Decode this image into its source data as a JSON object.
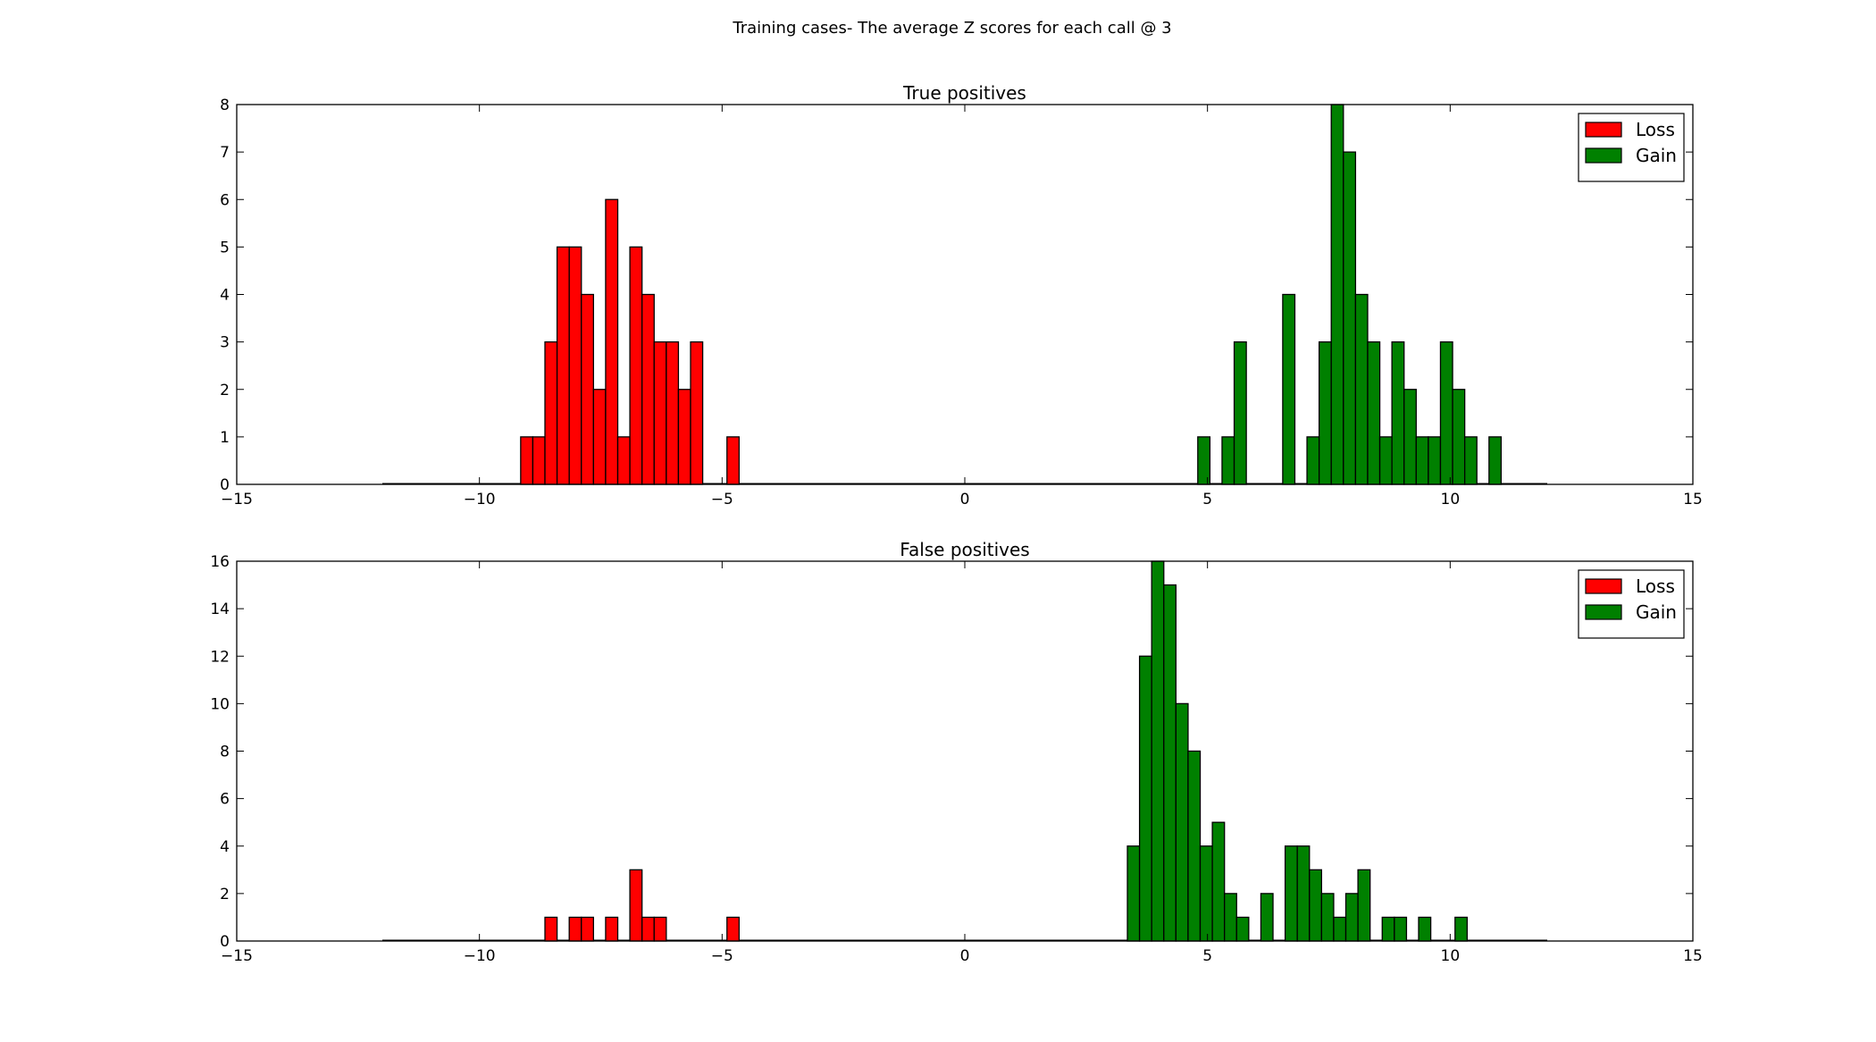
{
  "figure": {
    "title": "Training cases- The average Z scores for each call @ 3"
  },
  "chart_data": [
    {
      "type": "bar",
      "title": "True positives",
      "xlabel": "",
      "ylabel": "",
      "xlim": [
        -15,
        15
      ],
      "ylim": [
        0,
        8
      ],
      "xticks": [
        "−15",
        "−10",
        "−5",
        "0",
        "5",
        "10",
        "15"
      ],
      "yticks": [
        "0",
        "1",
        "2",
        "3",
        "4",
        "5",
        "6",
        "7",
        "8"
      ],
      "grid": false,
      "legend_position": "top-right",
      "baseline_range": [
        -12,
        12
      ],
      "series": [
        {
          "name": "Loss",
          "color": "#ff0000",
          "bins": [
            {
              "x0": -9.15,
              "x1": -8.9,
              "y": 1
            },
            {
              "x0": -8.9,
              "x1": -8.65,
              "y": 1
            },
            {
              "x0": -8.65,
              "x1": -8.4,
              "y": 3
            },
            {
              "x0": -8.4,
              "x1": -8.15,
              "y": 5
            },
            {
              "x0": -8.15,
              "x1": -7.9,
              "y": 5
            },
            {
              "x0": -7.9,
              "x1": -7.65,
              "y": 4
            },
            {
              "x0": -7.65,
              "x1": -7.4,
              "y": 2
            },
            {
              "x0": -7.4,
              "x1": -7.15,
              "y": 6
            },
            {
              "x0": -7.15,
              "x1": -6.9,
              "y": 1
            },
            {
              "x0": -6.9,
              "x1": -6.65,
              "y": 5
            },
            {
              "x0": -6.65,
              "x1": -6.4,
              "y": 4
            },
            {
              "x0": -6.4,
              "x1": -6.15,
              "y": 3
            },
            {
              "x0": -6.15,
              "x1": -5.9,
              "y": 3
            },
            {
              "x0": -5.9,
              "x1": -5.65,
              "y": 2
            },
            {
              "x0": -5.65,
              "x1": -5.4,
              "y": 3
            },
            {
              "x0": -4.9,
              "x1": -4.65,
              "y": 1
            }
          ]
        },
        {
          "name": "Gain",
          "color": "#008000",
          "bins": [
            {
              "x0": 4.8,
              "x1": 5.05,
              "y": 1
            },
            {
              "x0": 5.3,
              "x1": 5.55,
              "y": 1
            },
            {
              "x0": 5.55,
              "x1": 5.8,
              "y": 3
            },
            {
              "x0": 6.55,
              "x1": 6.8,
              "y": 4
            },
            {
              "x0": 7.05,
              "x1": 7.3,
              "y": 1
            },
            {
              "x0": 7.3,
              "x1": 7.55,
              "y": 3
            },
            {
              "x0": 7.55,
              "x1": 7.8,
              "y": 8
            },
            {
              "x0": 7.8,
              "x1": 8.05,
              "y": 7
            },
            {
              "x0": 8.05,
              "x1": 8.3,
              "y": 4
            },
            {
              "x0": 8.3,
              "x1": 8.55,
              "y": 3
            },
            {
              "x0": 8.55,
              "x1": 8.8,
              "y": 1
            },
            {
              "x0": 8.8,
              "x1": 9.05,
              "y": 3
            },
            {
              "x0": 9.05,
              "x1": 9.3,
              "y": 2
            },
            {
              "x0": 9.3,
              "x1": 9.55,
              "y": 1
            },
            {
              "x0": 9.55,
              "x1": 9.8,
              "y": 1
            },
            {
              "x0": 9.8,
              "x1": 10.05,
              "y": 3
            },
            {
              "x0": 10.05,
              "x1": 10.3,
              "y": 2
            },
            {
              "x0": 10.3,
              "x1": 10.55,
              "y": 1
            },
            {
              "x0": 10.8,
              "x1": 11.05,
              "y": 1
            }
          ]
        }
      ]
    },
    {
      "type": "bar",
      "title": "False positives",
      "xlabel": "",
      "ylabel": "",
      "xlim": [
        -15,
        15
      ],
      "ylim": [
        0,
        16
      ],
      "xticks": [
        "−15",
        "−10",
        "−5",
        "0",
        "5",
        "10",
        "15"
      ],
      "yticks": [
        "0",
        "2",
        "4",
        "6",
        "8",
        "10",
        "12",
        "14",
        "16"
      ],
      "grid": false,
      "legend_position": "top-right",
      "baseline_range": [
        -12,
        12
      ],
      "series": [
        {
          "name": "Loss",
          "color": "#ff0000",
          "bins": [
            {
              "x0": -8.65,
              "x1": -8.4,
              "y": 1
            },
            {
              "x0": -8.15,
              "x1": -7.9,
              "y": 1
            },
            {
              "x0": -7.9,
              "x1": -7.65,
              "y": 1
            },
            {
              "x0": -7.4,
              "x1": -7.15,
              "y": 1
            },
            {
              "x0": -6.9,
              "x1": -6.65,
              "y": 3
            },
            {
              "x0": -6.65,
              "x1": -6.4,
              "y": 1
            },
            {
              "x0": -6.4,
              "x1": -6.15,
              "y": 1
            },
            {
              "x0": -4.9,
              "x1": -4.65,
              "y": 1
            }
          ]
        },
        {
          "name": "Gain",
          "color": "#008000",
          "bins": [
            {
              "x0": 3.35,
              "x1": 3.6,
              "y": 4
            },
            {
              "x0": 3.6,
              "x1": 3.85,
              "y": 12
            },
            {
              "x0": 3.85,
              "x1": 4.1,
              "y": 16
            },
            {
              "x0": 4.1,
              "x1": 4.35,
              "y": 15
            },
            {
              "x0": 4.35,
              "x1": 4.6,
              "y": 10
            },
            {
              "x0": 4.6,
              "x1": 4.85,
              "y": 8
            },
            {
              "x0": 4.85,
              "x1": 5.1,
              "y": 4
            },
            {
              "x0": 5.1,
              "x1": 5.35,
              "y": 5
            },
            {
              "x0": 5.35,
              "x1": 5.6,
              "y": 2
            },
            {
              "x0": 5.6,
              "x1": 5.85,
              "y": 1
            },
            {
              "x0": 6.1,
              "x1": 6.35,
              "y": 2
            },
            {
              "x0": 6.6,
              "x1": 6.85,
              "y": 4
            },
            {
              "x0": 6.85,
              "x1": 7.1,
              "y": 4
            },
            {
              "x0": 7.1,
              "x1": 7.35,
              "y": 3
            },
            {
              "x0": 7.35,
              "x1": 7.6,
              "y": 2
            },
            {
              "x0": 7.6,
              "x1": 7.85,
              "y": 1
            },
            {
              "x0": 7.85,
              "x1": 8.1,
              "y": 2
            },
            {
              "x0": 8.1,
              "x1": 8.35,
              "y": 3
            },
            {
              "x0": 8.6,
              "x1": 8.85,
              "y": 1
            },
            {
              "x0": 8.85,
              "x1": 9.1,
              "y": 1
            },
            {
              "x0": 9.35,
              "x1": 9.6,
              "y": 1
            },
            {
              "x0": 10.1,
              "x1": 10.35,
              "y": 1
            }
          ]
        }
      ]
    }
  ]
}
